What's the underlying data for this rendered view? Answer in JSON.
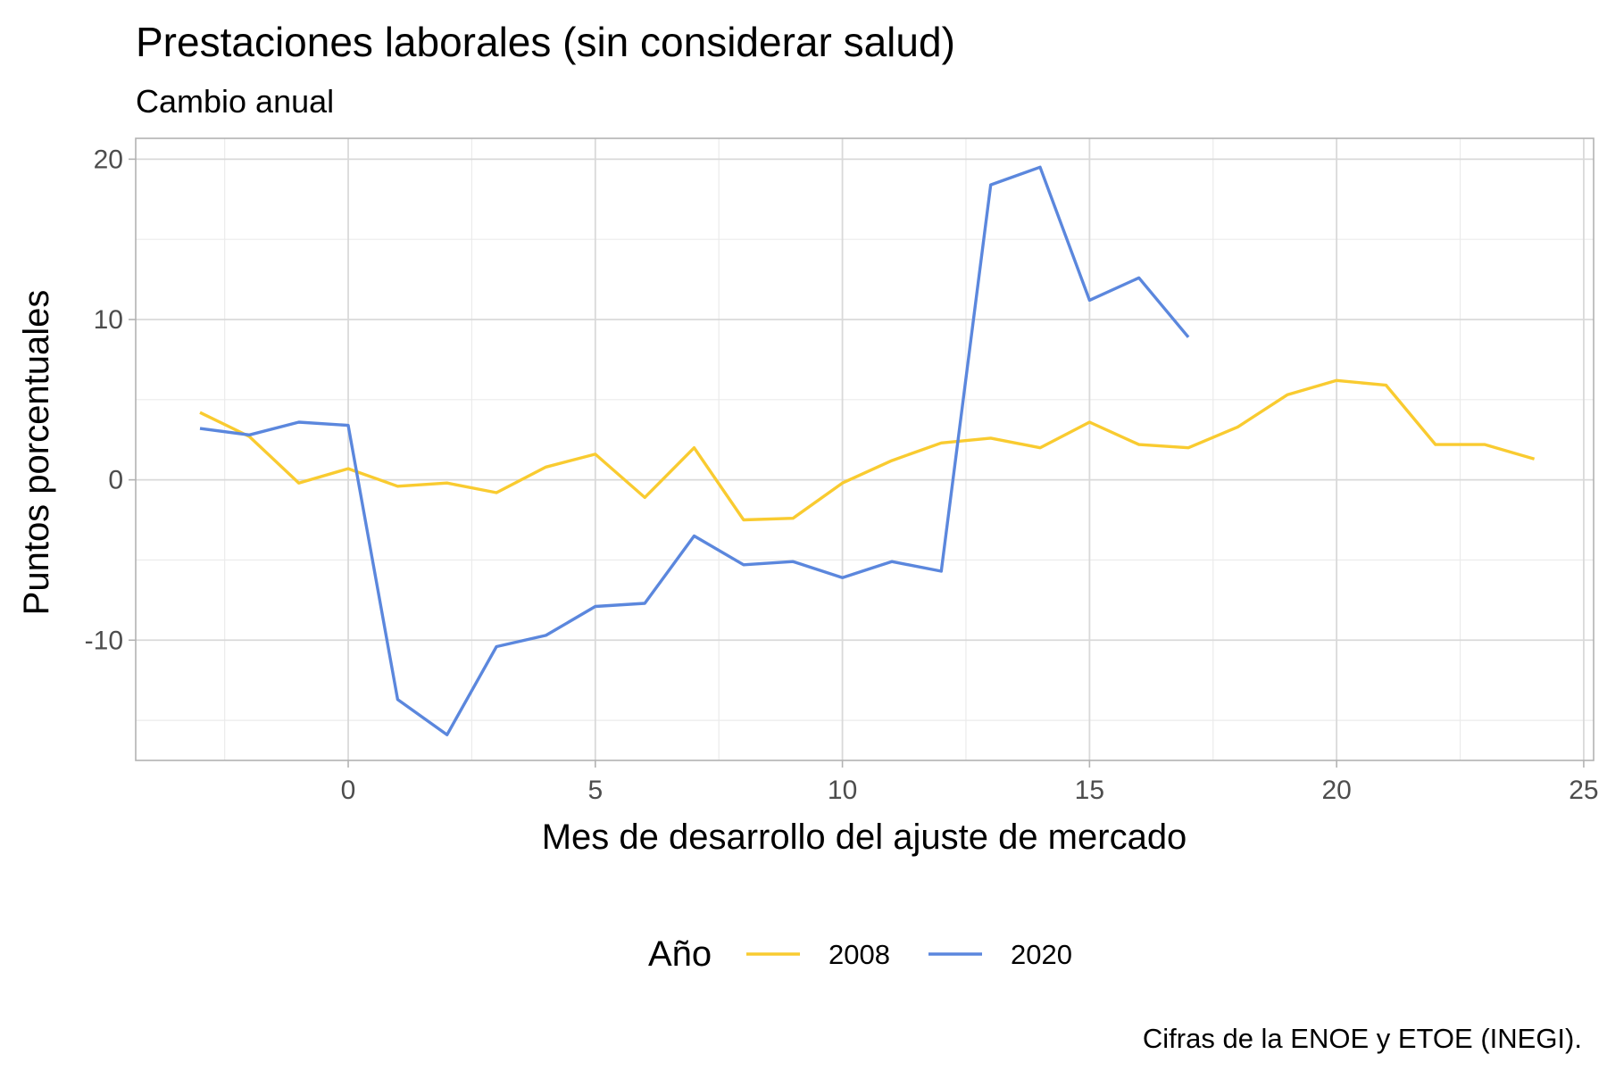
{
  "chart_data": {
    "type": "line",
    "title": "Prestaciones laborales (sin considerar salud)",
    "subtitle": "Cambio anual",
    "xlabel": "Mes de desarrollo del ajuste de mercado",
    "ylabel": "Puntos porcentuales",
    "caption": "Cifras de la ENOE y ETOE (INEGI).",
    "xlim": [
      -4.3,
      25.2
    ],
    "ylim": [
      -17.5,
      21.3
    ],
    "x_ticks": [
      0,
      5,
      10,
      15,
      20,
      25
    ],
    "x_tick_labels": [
      "0",
      "5",
      "10",
      "15",
      "20",
      "25"
    ],
    "y_ticks": [
      -10,
      0,
      10,
      20
    ],
    "y_tick_labels": [
      "-10",
      "0",
      "10",
      "20"
    ],
    "grid": true,
    "legend_title": "Año",
    "legend_position": "bottom",
    "series": [
      {
        "name": "2008",
        "color": "#F9CB30",
        "x": [
          -3,
          -2,
          -1,
          0,
          1,
          2,
          3,
          4,
          5,
          6,
          7,
          8,
          9,
          10,
          11,
          12,
          13,
          14,
          15,
          16,
          17,
          18,
          19,
          20,
          21,
          22,
          23,
          24
        ],
        "y": [
          4.2,
          2.7,
          -0.2,
          0.7,
          -0.4,
          -0.2,
          -0.8,
          0.8,
          1.6,
          -1.1,
          2.0,
          -2.5,
          -2.4,
          -0.2,
          1.2,
          2.3,
          2.6,
          2.0,
          3.6,
          2.2,
          2.0,
          3.3,
          5.3,
          6.2,
          5.9,
          2.2,
          2.2,
          1.3
        ]
      },
      {
        "name": "2020",
        "color": "#5B87DD",
        "x": [
          -3,
          -2,
          -1,
          0,
          1,
          2,
          3,
          4,
          5,
          6,
          7,
          8,
          9,
          10,
          11,
          12,
          13,
          14,
          15,
          16,
          17
        ],
        "y": [
          3.2,
          2.8,
          3.6,
          3.4,
          -13.7,
          -15.9,
          -10.4,
          -9.7,
          -7.9,
          -7.7,
          -3.5,
          -5.3,
          -5.1,
          -6.1,
          -5.1,
          -5.7,
          18.4,
          19.5,
          11.2,
          12.6,
          8.9
        ]
      }
    ]
  }
}
